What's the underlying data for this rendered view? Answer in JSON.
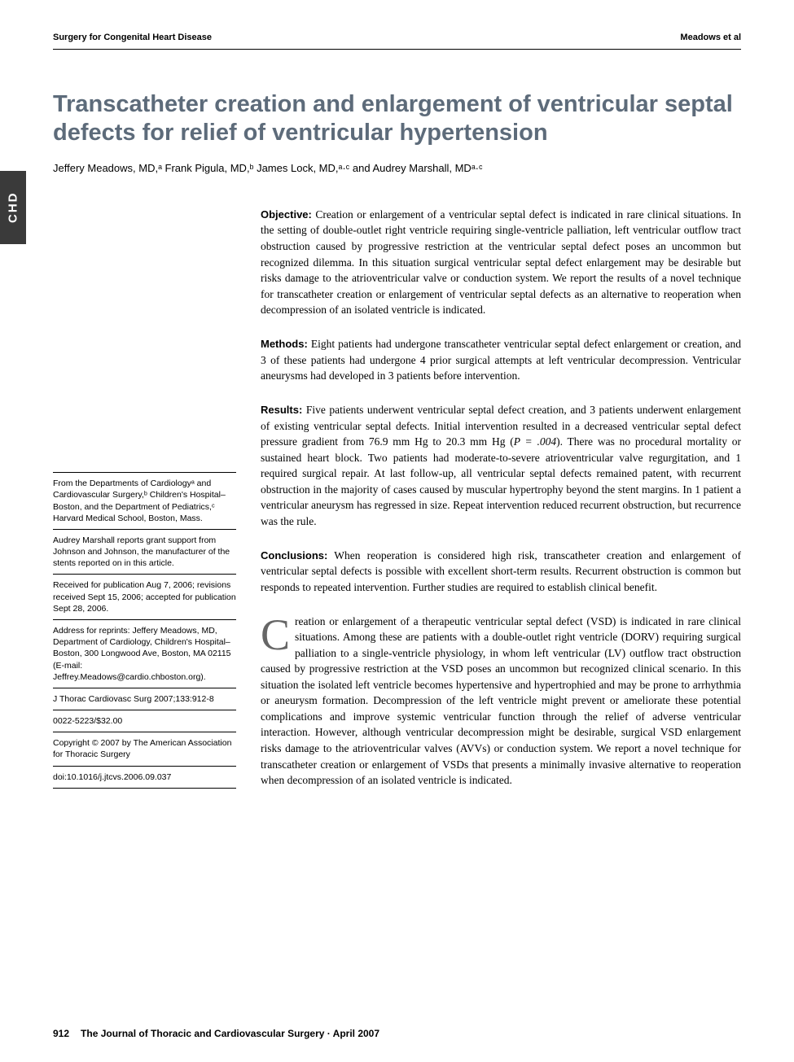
{
  "header": {
    "left": "Surgery for Congenital Heart Disease",
    "right": "Meadows et al"
  },
  "side_tab": "CHD",
  "title": "Transcatheter creation and enlargement of ventricular septal defects for relief of ventricular hypertension",
  "authors_html": "Jeffery Meadows, MD,ᵃ Frank Pigula, MD,ᵇ James Lock, MD,ᵃ·ᶜ and Audrey Marshall, MDᵃ·ᶜ",
  "abstract": {
    "objective": {
      "label": "Objective:",
      "text": "Creation or enlargement of a ventricular septal defect is indicated in rare clinical situations. In the setting of double-outlet right ventricle requiring single-ventricle palliation, left ventricular outflow tract obstruction caused by progressive restriction at the ventricular septal defect poses an uncommon but recognized dilemma. In this situation surgical ventricular septal defect enlargement may be desirable but risks damage to the atrioventricular valve or conduction system. We report the results of a novel technique for transcatheter creation or enlargement of ventricular septal defects as an alternative to reoperation when decompression of an isolated ventricle is indicated."
    },
    "methods": {
      "label": "Methods:",
      "text": "Eight patients had undergone transcatheter ventricular septal defect enlargement or creation, and 3 of these patients had undergone 4 prior surgical attempts at left ventricular decompression. Ventricular aneurysms had developed in 3 patients before intervention."
    },
    "results": {
      "label": "Results:",
      "text_before_p": "Five patients underwent ventricular septal defect creation, and 3 patients underwent enlargement of existing ventricular septal defects. Initial intervention resulted in a decreased ventricular septal defect pressure gradient from 76.9 mm Hg to 20.3 mm Hg (",
      "p_stat": "P = .004",
      "text_after_p": "). There was no procedural mortality or sustained heart block. Two patients had moderate-to-severe atrioventricular valve regurgitation, and 1 required surgical repair. At last follow-up, all ventricular septal defects remained patent, with recurrent obstruction in the majority of cases caused by muscular hypertrophy beyond the stent margins. In 1 patient a ventricular aneurysm has regressed in size. Repeat intervention reduced recurrent obstruction, but recurrence was the rule."
    },
    "conclusions": {
      "label": "Conclusions:",
      "text": "When reoperation is considered high risk, transcatheter creation and enlargement of ventricular septal defects is possible with excellent short-term results. Recurrent obstruction is common but responds to repeated intervention. Further studies are required to establish clinical benefit."
    }
  },
  "meta": {
    "affiliation": "From the Departments of Cardiologyᵃ and Cardiovascular Surgery,ᵇ Children's Hospital–Boston, and the Department of Pediatrics,ᶜ Harvard Medical School, Boston, Mass.",
    "disclosure": "Audrey Marshall reports grant support from Johnson and Johnson, the manufacturer of the stents reported on in this article.",
    "dates": "Received for publication Aug 7, 2006; revisions received Sept 15, 2006; accepted for publication Sept 28, 2006.",
    "reprints": "Address for reprints: Jeffery Meadows, MD, Department of Cardiology, Children's Hospital–Boston, 300 Longwood Ave, Boston, MA 02115 (E-mail: Jeffrey.Meadows@cardio.chboston.org).",
    "citation": "J Thorac Cardiovasc Surg 2007;133:912-8",
    "issn": "0022-5223/$32.00",
    "copyright": "Copyright © 2007 by The American Association for Thoracic Surgery",
    "doi": "doi:10.1016/j.jtcvs.2006.09.037"
  },
  "body": {
    "dropcap": "C",
    "para1": "reation or enlargement of a therapeutic ventricular septal defect (VSD) is indicated in rare clinical situations. Among these are patients with a double-outlet right ventricle (DORV) requiring surgical palliation to a single-ventricle physiology, in whom left ventricular (LV) outflow tract obstruction caused by progressive restriction at the VSD poses an uncommon but recognized clinical scenario. In this situation the isolated left ventricle becomes hypertensive and hypertrophied and may be prone to arrhythmia or aneurysm formation. Decompression of the left ventricle might prevent or ameliorate these potential complications and improve systemic ventricular function through the relief of adverse ventricular interaction. However, although ventricular decompression might be desirable, surgical VSD enlargement risks damage to the atrioventricular valves (AVVs) or conduction system. We report a novel technique for transcatheter creation or enlargement of VSDs that presents a minimally invasive alternative to reoperation when decompression of an isolated ventricle is indicated."
  },
  "footer": {
    "page": "912",
    "journal": "The Journal of Thoracic and Cardiovascular Surgery · April 2007"
  },
  "colors": {
    "title_color": "#5d6b7a",
    "side_tab_bg": "#3a3a3a",
    "dropcap_color": "#666666",
    "text_color": "#000000",
    "background": "#ffffff"
  },
  "typography": {
    "title_fontsize": 29,
    "body_fontsize": 13.5,
    "meta_fontsize": 10.5,
    "header_fontsize": 11,
    "author_fontsize": 13
  }
}
